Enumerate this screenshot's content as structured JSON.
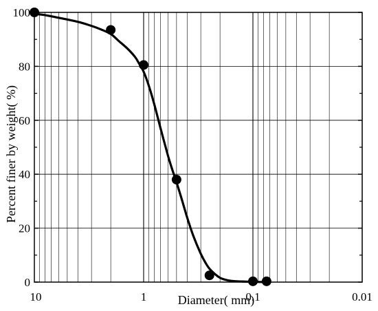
{
  "chart_data": {
    "type": "scatter",
    "title": "",
    "xlabel": "Diameter(   mm)",
    "ylabel": "Percent finer by weight(   %)",
    "x_scale": "log",
    "x_reversed": true,
    "xlim": [
      10,
      0.01
    ],
    "ylim": [
      0,
      100
    ],
    "x_ticks": [
      10,
      1,
      0.1,
      0.01
    ],
    "x_tick_labels": [
      "10",
      "1",
      "0.1",
      "0.01"
    ],
    "y_ticks": [
      0,
      20,
      40,
      60,
      80,
      100
    ],
    "y_tick_labels": [
      "0",
      "20",
      "40",
      "60",
      "80",
      "100"
    ],
    "grid": true,
    "legend": "none",
    "colors": {
      "line": "#000000",
      "marker": "#000000",
      "grid": "#000000"
    },
    "series": [
      {
        "kind": "markers",
        "x": [
          10,
          2,
          1,
          0.5,
          0.25,
          0.1,
          0.075
        ],
        "y": [
          100,
          93.5,
          80.5,
          38,
          2.5,
          0.3,
          0.3
        ]
      },
      {
        "kind": "fitted-line",
        "x": [
          10,
          8,
          6,
          4,
          3,
          2.5,
          2,
          1.7,
          1.4,
          1.2,
          1.1,
          1,
          0.9,
          0.8,
          0.7,
          0.6,
          0.55,
          0.5,
          0.45,
          0.4,
          0.35,
          0.3,
          0.27,
          0.25,
          0.22,
          0.2,
          0.18,
          0.16,
          0.14,
          0.12,
          0.1,
          0.085,
          0.075
        ],
        "y": [
          99.5,
          99,
          98,
          96.5,
          95,
          93.8,
          92,
          89.5,
          86.5,
          83.5,
          81,
          78,
          73,
          66,
          57,
          47,
          42,
          37,
          31,
          24,
          17,
          10.5,
          7,
          5,
          2.8,
          1.6,
          0.9,
          0.5,
          0.3,
          0.2,
          0.1,
          0.05,
          0
        ]
      }
    ]
  }
}
